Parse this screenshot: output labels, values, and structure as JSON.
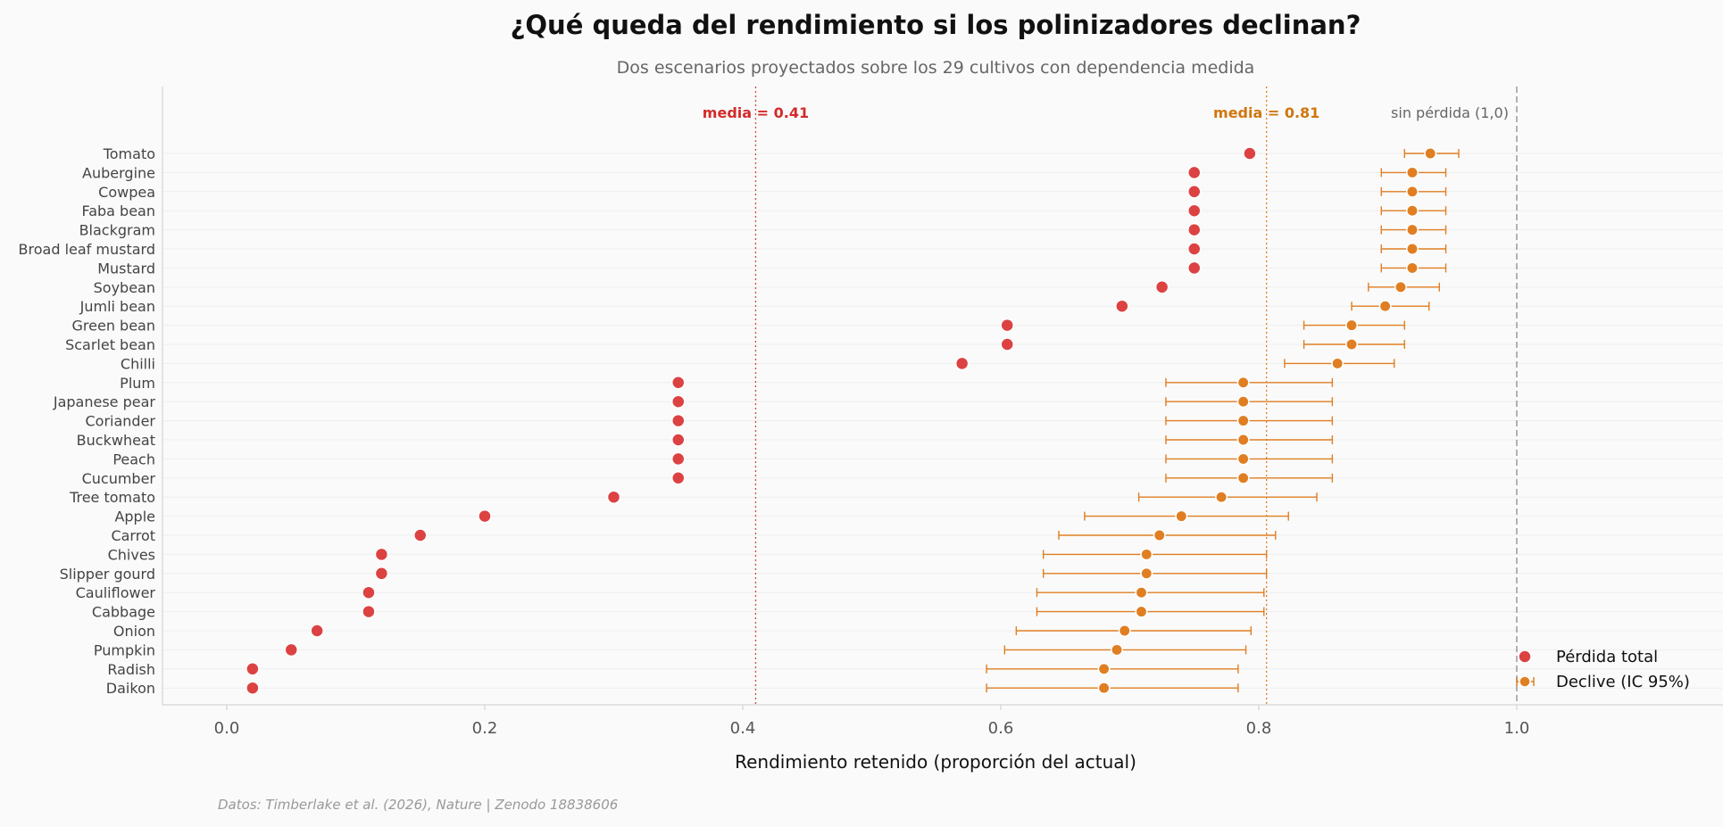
{
  "chart_data": {
    "type": "scatter",
    "title": "¿Qué queda del rendimiento si los polinizadores declinan?",
    "subtitle": "Dos escenarios proyectados sobre los 29 cultivos con dependencia medida",
    "xlabel": "Rendimiento retenido (proporción del actual)",
    "xlim": [
      -0.05,
      1.15
    ],
    "xticks": [
      0.0,
      0.2,
      0.4,
      0.6,
      0.8,
      1.0
    ],
    "xtick_labels": [
      "0.0",
      "0.2",
      "0.4",
      "0.6",
      "0.8",
      "1.0"
    ],
    "categories": [
      "Tomato",
      "Aubergine",
      "Cowpea",
      "Faba bean",
      "Blackgram",
      "Broad leaf mustard",
      "Mustard",
      "Soybean",
      "Jumli bean",
      "Green bean",
      "Scarlet bean",
      "Chilli",
      "Plum",
      "Japanese pear",
      "Coriander",
      "Buckwheat",
      "Peach",
      "Cucumber",
      "Tree tomato",
      "Apple",
      "Carrot",
      "Chives",
      "Slipper gourd",
      "Cauliflower",
      "Cabbage",
      "Onion",
      "Pumpkin",
      "Radish",
      "Daikon"
    ],
    "series": [
      {
        "name": "Pérdida total",
        "color": "#dc4242",
        "values": [
          0.793,
          0.75,
          0.75,
          0.75,
          0.75,
          0.75,
          0.75,
          0.725,
          0.694,
          0.605,
          0.605,
          0.57,
          0.35,
          0.35,
          0.35,
          0.35,
          0.35,
          0.35,
          0.3,
          0.2,
          0.15,
          0.12,
          0.12,
          0.11,
          0.11,
          0.07,
          0.05,
          0.02,
          0.02
        ]
      },
      {
        "name": "Declive (IC 95%)",
        "color": "#e07e22",
        "values": [
          0.933,
          0.919,
          0.919,
          0.919,
          0.919,
          0.919,
          0.919,
          0.91,
          0.898,
          0.872,
          0.872,
          0.861,
          0.788,
          0.788,
          0.788,
          0.788,
          0.788,
          0.788,
          0.771,
          0.74,
          0.723,
          0.713,
          0.713,
          0.709,
          0.709,
          0.696,
          0.69,
          0.68,
          0.68
        ],
        "ci_low": [
          0.913,
          0.895,
          0.895,
          0.895,
          0.895,
          0.895,
          0.895,
          0.885,
          0.872,
          0.835,
          0.835,
          0.82,
          0.728,
          0.728,
          0.728,
          0.728,
          0.728,
          0.728,
          0.707,
          0.665,
          0.645,
          0.633,
          0.633,
          0.628,
          0.628,
          0.612,
          0.603,
          0.589,
          0.589
        ],
        "ci_high": [
          0.955,
          0.945,
          0.945,
          0.945,
          0.945,
          0.945,
          0.945,
          0.94,
          0.932,
          0.913,
          0.913,
          0.905,
          0.857,
          0.857,
          0.857,
          0.857,
          0.857,
          0.857,
          0.845,
          0.823,
          0.813,
          0.806,
          0.806,
          0.804,
          0.804,
          0.794,
          0.79,
          0.784,
          0.784
        ]
      }
    ],
    "reference_lines": [
      {
        "x": 0.41,
        "label": "media = 0.41",
        "color": "#dc4242",
        "style": "dotted"
      },
      {
        "x": 0.806,
        "label": "media = 0.81",
        "color": "#e07e22",
        "style": "dotted"
      },
      {
        "x": 1.0,
        "label": "sin pérdida (1,0)",
        "color": "#999999",
        "style": "dashed"
      }
    ],
    "legend": {
      "position": "bottom-right",
      "entries": [
        "Pérdida total",
        "Declive (IC 95%)"
      ]
    },
    "grid": "horizontal-light",
    "source": "Datos: Timberlake et al. (2026), Nature | Zenodo 18838606"
  }
}
